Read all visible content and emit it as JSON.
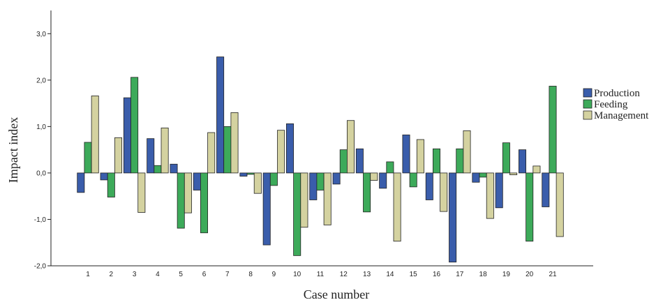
{
  "chart_data": {
    "type": "bar",
    "title": "",
    "xlabel": "Case number",
    "ylabel": "Impact index",
    "ylim": [
      -2.0,
      3.5
    ],
    "yticks": [
      -2.0,
      -1.0,
      0.0,
      1.0,
      2.0,
      3.0
    ],
    "ytick_labels": [
      "-2,0",
      "-1,0",
      "0,0",
      "1,0",
      "2,0",
      "3,0"
    ],
    "categories": [
      "1",
      "2",
      "3",
      "4",
      "5",
      "6",
      "7",
      "8",
      "9",
      "10",
      "11",
      "12",
      "13",
      "14",
      "15",
      "16",
      "17",
      "18",
      "19",
      "20",
      "21"
    ],
    "grid": false,
    "legend_position": "right",
    "series": [
      {
        "name": "Production",
        "color": "#3a5dab",
        "values": [
          -0.42,
          -0.15,
          1.62,
          0.74,
          0.19,
          -0.37,
          2.5,
          -0.07,
          -1.55,
          1.06,
          -0.58,
          -0.24,
          0.52,
          -0.33,
          0.82,
          -0.58,
          -1.92,
          -0.2,
          -0.75,
          0.5,
          -0.73
        ]
      },
      {
        "name": "Feeding",
        "color": "#3daa5a",
        "values": [
          0.66,
          -0.52,
          2.06,
          0.16,
          -1.19,
          -1.29,
          1.0,
          -0.03,
          -0.27,
          -1.78,
          -0.37,
          0.5,
          -0.84,
          0.24,
          -0.3,
          0.52,
          0.52,
          -0.09,
          0.65,
          -1.47,
          1.87
        ]
      },
      {
        "name": "Management",
        "color": "#d4d2a0",
        "values": [
          1.66,
          0.76,
          -0.85,
          0.97,
          -0.86,
          0.87,
          1.3,
          -0.44,
          0.92,
          -1.17,
          -1.12,
          1.13,
          -0.16,
          -1.47,
          0.72,
          -0.83,
          0.91,
          -0.98,
          -0.04,
          0.15,
          -1.37
        ]
      }
    ]
  }
}
